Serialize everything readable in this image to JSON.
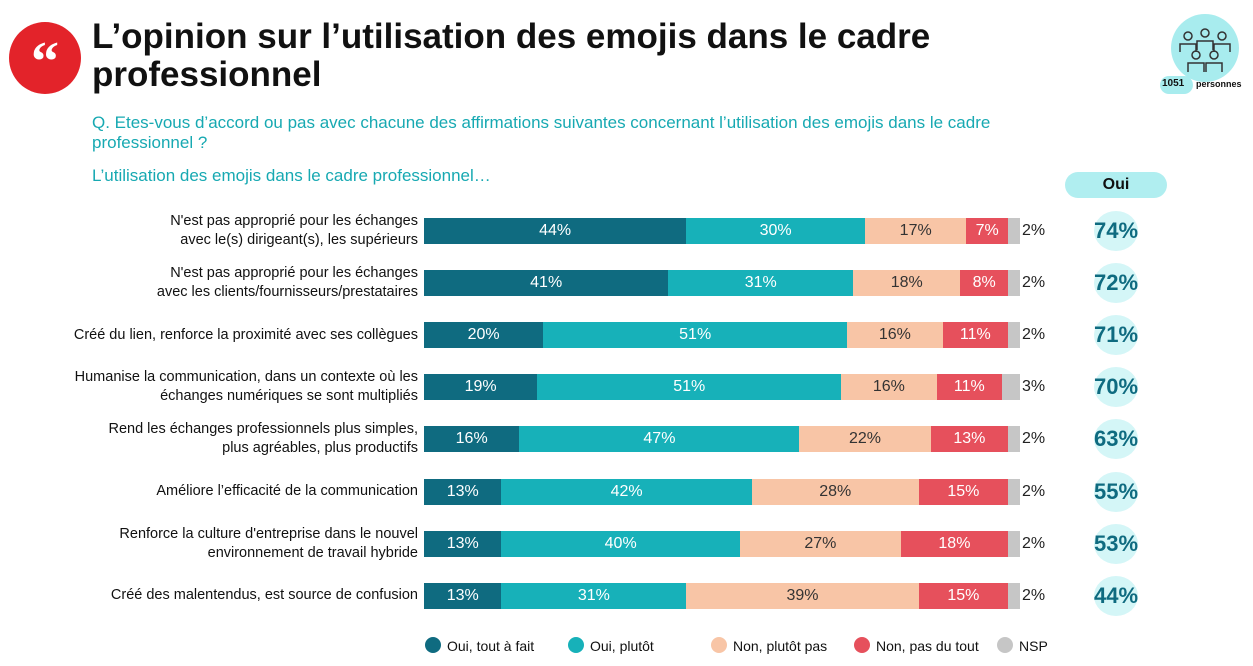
{
  "title": "L’opinion sur l’utilisation des emojis dans le cadre professionnel",
  "question": "Q. Etes-vous d’accord ou pas avec chacune des affirmations suivantes concernant l’utilisation des emojis dans le cadre professionnel ?",
  "sample": {
    "count": "1051",
    "unit": "personnes"
  },
  "chart_data": {
    "type": "stacked-barh",
    "subtitle": "L’utilisation des emojis dans le cadre professionnel…",
    "categories": [
      "N'est pas approprié pour les échanges\navec le(s) dirigeant(s), les supérieurs",
      "N'est pas approprié pour les échanges\navec les clients/fournisseurs/prestataires",
      "Créé du lien, renforce la proximité avec ses collègues",
      "Humanise la communication, dans un contexte où les\néchanges numériques se sont multipliés",
      "Rend les échanges professionnels plus simples,\nplus agréables, plus productifs",
      "Améliore l’efficacité de la communication",
      "Renforce la culture d'entreprise dans le nouvel\nenvironnement de travail hybride",
      "Créé des malentendus, est source de confusion"
    ],
    "xlim": [
      0,
      100
    ],
    "series": [
      {
        "name": "Oui, tout à fait",
        "color": "#0f6b80",
        "values": [
          44,
          41,
          20,
          19,
          16,
          13,
          13,
          13
        ],
        "value_labels": [
          "44%",
          "41%",
          "20%",
          "19%",
          "16%",
          "13%",
          "13%",
          "13%"
        ]
      },
      {
        "name": "Oui, plutôt",
        "color": "#17b1b9",
        "values": [
          30,
          31,
          51,
          51,
          47,
          42,
          40,
          31
        ],
        "value_labels": [
          "30%",
          "31%",
          "51%",
          "51%",
          "47%",
          "42%",
          "40%",
          "31%"
        ]
      },
      {
        "name": "Non, plutôt pas",
        "color": "#f8c5a6",
        "values": [
          17,
          18,
          16,
          16,
          22,
          28,
          27,
          39
        ],
        "value_labels": [
          "17%",
          "18%",
          "16%",
          "16%",
          "22%",
          "28%",
          "27%",
          "39%"
        ]
      },
      {
        "name": "Non, pas du tout",
        "color": "#e6505c",
        "values": [
          7,
          8,
          11,
          11,
          13,
          15,
          18,
          15
        ],
        "value_labels": [
          "7%",
          "8%",
          "11%",
          "11%",
          "13%",
          "15%",
          "18%",
          "15%"
        ]
      },
      {
        "name": "NSP",
        "color": "#c6c6c6",
        "values": [
          2,
          2,
          2,
          3,
          2,
          2,
          2,
          2
        ],
        "value_labels": [
          "2%",
          "2%",
          "2%",
          "3%",
          "2%",
          "2%",
          "2%",
          "2%"
        ]
      }
    ],
    "totals": {
      "name": "Oui",
      "values": [
        74,
        72,
        71,
        70,
        63,
        55,
        53,
        44
      ],
      "value_labels": [
        "74%",
        "72%",
        "71%",
        "70%",
        "63%",
        "55%",
        "53%",
        "44%"
      ]
    }
  }
}
